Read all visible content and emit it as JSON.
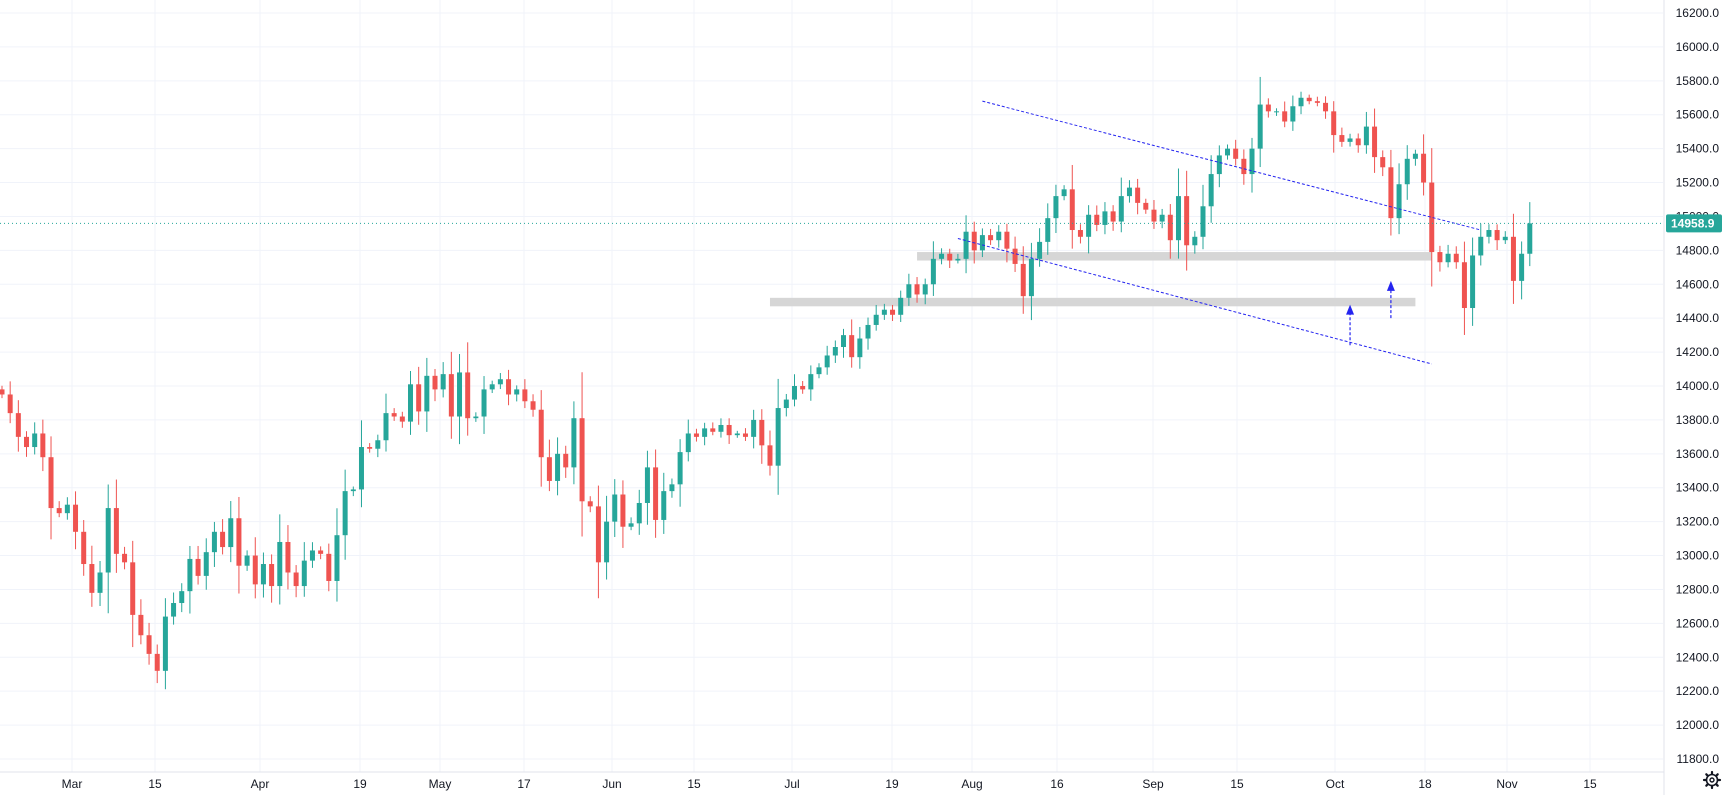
{
  "chart_data": {
    "type": "candlestick",
    "x_axis": {
      "tick_labels": [
        "Mar",
        "15",
        "Apr",
        "19",
        "May",
        "17",
        "Jun",
        "15",
        "Jul",
        "19",
        "Aug",
        "16",
        "Sep",
        "15",
        "Oct",
        "18",
        "Nov",
        "15"
      ]
    },
    "y_axis": {
      "range": [
        11700,
        16250
      ],
      "tick_values": [
        11800,
        12000,
        12200,
        12400,
        12600,
        12800,
        13000,
        13200,
        13400,
        13600,
        13800,
        14000,
        14200,
        14400,
        14600,
        14800,
        15000,
        15200,
        15400,
        15600,
        15800,
        16000,
        16200
      ],
      "tick_labels": [
        "11800.0",
        "12000.0",
        "12200.0",
        "12400.0",
        "12600.0",
        "12800.0",
        "13000.0",
        "13200.0",
        "13400.0",
        "13600.0",
        "13800.0",
        "14000.0",
        "14200.0",
        "14400.0",
        "14600.0",
        "14800.0",
        "15000.0",
        "15200.0",
        "15400.0",
        "15600.0",
        "15800.0",
        "16000.0",
        "16200.0"
      ],
      "position": "right"
    },
    "grid": true,
    "last_price": {
      "value": 14958.9,
      "label": "14958.9"
    },
    "series": [
      {
        "closes": [
          13950,
          13840,
          13700,
          13640,
          13720,
          13580,
          13280,
          13250,
          13300,
          13140,
          12950,
          12780,
          12900,
          13280,
          13010,
          12960,
          12650,
          12530,
          12420,
          12320,
          12640,
          12720,
          12790,
          12980,
          12880,
          13020,
          13140,
          13050,
          13220,
          12940,
          13000,
          12830,
          12950,
          12820,
          13080,
          12900,
          12820,
          12970,
          13030,
          13010,
          12850,
          13120,
          13380,
          13390,
          13640,
          13630,
          13680,
          13840,
          13820,
          13790,
          14010,
          13850,
          14060,
          13980,
          14070,
          13820,
          14080,
          13810,
          13820,
          13980,
          14010,
          14040,
          13950,
          13980,
          13910,
          13860,
          13580,
          13440,
          13600,
          13520,
          13810,
          13320,
          13290,
          12960,
          13200,
          13360,
          13170,
          13190,
          13310,
          13520,
          13210,
          13380,
          13420,
          13610,
          13720,
          13700,
          13750,
          13730,
          13770,
          13710,
          13720,
          13700,
          13800,
          13650,
          13530,
          13870,
          13920,
          14000,
          13980,
          14070,
          14110,
          14180,
          14230,
          14300,
          14170,
          14280,
          14360,
          14420,
          14450,
          14420,
          14520,
          14600,
          14540,
          14600,
          14750,
          14780,
          14740,
          14750,
          14910,
          14800,
          14890,
          14860,
          14910,
          14810,
          14720,
          14530,
          14750,
          14850,
          14990,
          15120,
          15160,
          14920,
          14880,
          15010,
          14950,
          15030,
          14970,
          15120,
          15170,
          15080,
          15040,
          14970,
          15010,
          14860,
          15120,
          14830,
          14880,
          15060,
          15250,
          15360,
          15400,
          15340,
          15250,
          15400,
          15660,
          15620,
          15620,
          15560,
          15650,
          15700,
          15680,
          15670,
          15620,
          15480,
          15440,
          15460,
          15420,
          15530,
          15350,
          15290,
          14990,
          15190,
          15340,
          15370,
          15200,
          14790,
          14730,
          14780,
          14730,
          14460,
          14770,
          14880,
          14920,
          14860,
          14880,
          14620,
          14780,
          14958.9
        ],
        "opens": [
          13980,
          13950,
          13840,
          13700,
          13640,
          13720,
          13580,
          13280,
          13250,
          13300,
          13140,
          12950,
          12780,
          12900,
          13280,
          13010,
          12960,
          12650,
          12530,
          12420,
          12320,
          12640,
          12720,
          12790,
          12980,
          12880,
          13020,
          13140,
          13050,
          13220,
          12940,
          13000,
          12830,
          12950,
          12820,
          13080,
          12900,
          12820,
          12970,
          13030,
          13010,
          12850,
          13120,
          13380,
          13390,
          13640,
          13630,
          13680,
          13840,
          13820,
          13790,
          14010,
          13850,
          14060,
          13980,
          14070,
          13820,
          14080,
          13810,
          13820,
          13980,
          14010,
          14040,
          13950,
          13980,
          13910,
          13860,
          13580,
          13440,
          13600,
          13520,
          13810,
          13320,
          13290,
          12960,
          13200,
          13360,
          13170,
          13190,
          13310,
          13520,
          13210,
          13380,
          13420,
          13610,
          13720,
          13700,
          13750,
          13730,
          13770,
          13710,
          13720,
          13700,
          13800,
          13650,
          13530,
          13870,
          13920,
          14000,
          13980,
          14070,
          14110,
          14180,
          14230,
          14300,
          14170,
          14280,
          14360,
          14420,
          14450,
          14420,
          14520,
          14600,
          14540,
          14600,
          14750,
          14780,
          14740,
          14750,
          14910,
          14800,
          14890,
          14860,
          14910,
          14810,
          14720,
          14530,
          14750,
          14850,
          14990,
          15120,
          15160,
          14920,
          14880,
          15010,
          14950,
          15030,
          14970,
          15120,
          15170,
          15080,
          15040,
          14970,
          15010,
          14860,
          15120,
          14830,
          14880,
          15060,
          15250,
          15360,
          15400,
          15340,
          15250,
          15400,
          15660,
          15620,
          15620,
          15560,
          15650,
          15700,
          15680,
          15670,
          15620,
          15480,
          15440,
          15460,
          15420,
          15530,
          15350,
          15290,
          14990,
          15190,
          15340,
          15370,
          15200,
          14790,
          14730,
          14780,
          14730,
          14460,
          14770,
          14880,
          14920,
          14860,
          14880,
          14620,
          14780
        ]
      }
    ],
    "annotations": [
      {
        "kind": "trendline",
        "color": "#2424f0",
        "from": [
          120,
          15680
        ],
        "to": [
          181,
          14920
        ]
      },
      {
        "kind": "trendline",
        "color": "#2424f0",
        "from": [
          117,
          14870
        ],
        "to": [
          175,
          14130
        ]
      },
      {
        "kind": "zone",
        "color": "#d4d4d4",
        "x_from": 112,
        "x_to": 175,
        "y_from": 14740,
        "y_to": 14790
      },
      {
        "kind": "zone",
        "color": "#d4d4d4",
        "x_from": 94,
        "x_to": 173,
        "y_from": 14470,
        "y_to": 14520
      },
      {
        "kind": "arrow",
        "color": "#2424f0",
        "x": 165,
        "y_from": 14240,
        "y_to": 14480
      },
      {
        "kind": "arrow",
        "color": "#2424f0",
        "x": 170,
        "y_from": 14400,
        "y_to": 14620
      }
    ],
    "colors": {
      "up": "#26a69a",
      "down": "#ef5350",
      "grid": "#f0f3fa",
      "axis_text": "#131722",
      "last_price_bg": "#26a69a"
    }
  },
  "settings_icon": "gear-icon"
}
